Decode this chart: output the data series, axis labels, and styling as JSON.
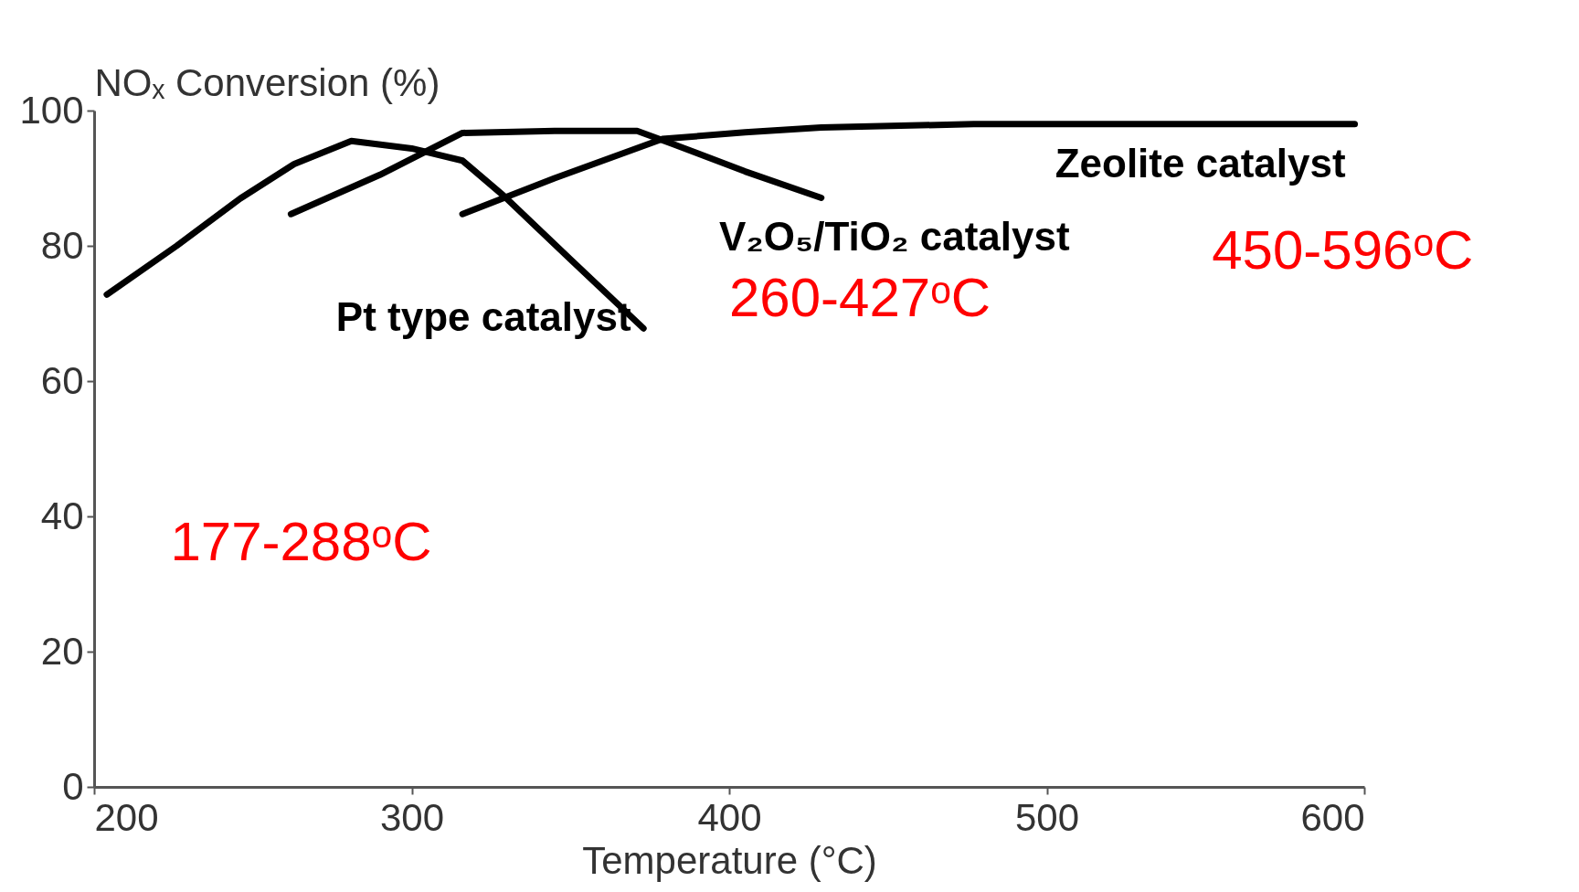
{
  "chart_data": {
    "type": "line",
    "xlabel": "Temperature (°C)",
    "ylabel": "NOₓ Conversion (%)",
    "xlim": [
      200,
      600
    ],
    "xticks": [
      200,
      300,
      400,
      500,
      600
    ],
    "ylim": [
      0,
      100
    ],
    "yticks": [
      0,
      20,
      40,
      60,
      80,
      100
    ],
    "grid": false,
    "legend": false,
    "marker": "none",
    "line_style": "solid",
    "series": [
      {
        "name": "Pt type catalyst",
        "color": "#000000",
        "x": [
          204,
          226,
          246,
          263,
          281,
          300,
          316,
          329,
          350,
          373
        ],
        "values": [
          72.8,
          80,
          87,
          92.1,
          95.5,
          94.4,
          92.6,
          87.4,
          78,
          67.8
        ]
      },
      {
        "name": "V₂O₅/TiO₂ catalyst",
        "color": "#000000",
        "x": [
          262,
          290,
          316,
          345,
          371,
          382,
          405,
          429
        ],
        "values": [
          84.7,
          90.5,
          96.7,
          97,
          97,
          95.1,
          91,
          87.1
        ]
      },
      {
        "name": "Zeolite catalyst",
        "color": "#000000",
        "x": [
          316,
          345,
          379,
          405,
          429,
          477,
          530,
          597
        ],
        "values": [
          84.7,
          90,
          95.8,
          96.8,
          97.5,
          98,
          98,
          98
        ]
      }
    ],
    "annotations": [
      "177-288ᵒC",
      "260-427ᵒC",
      "450-596ᵒC"
    ]
  }
}
